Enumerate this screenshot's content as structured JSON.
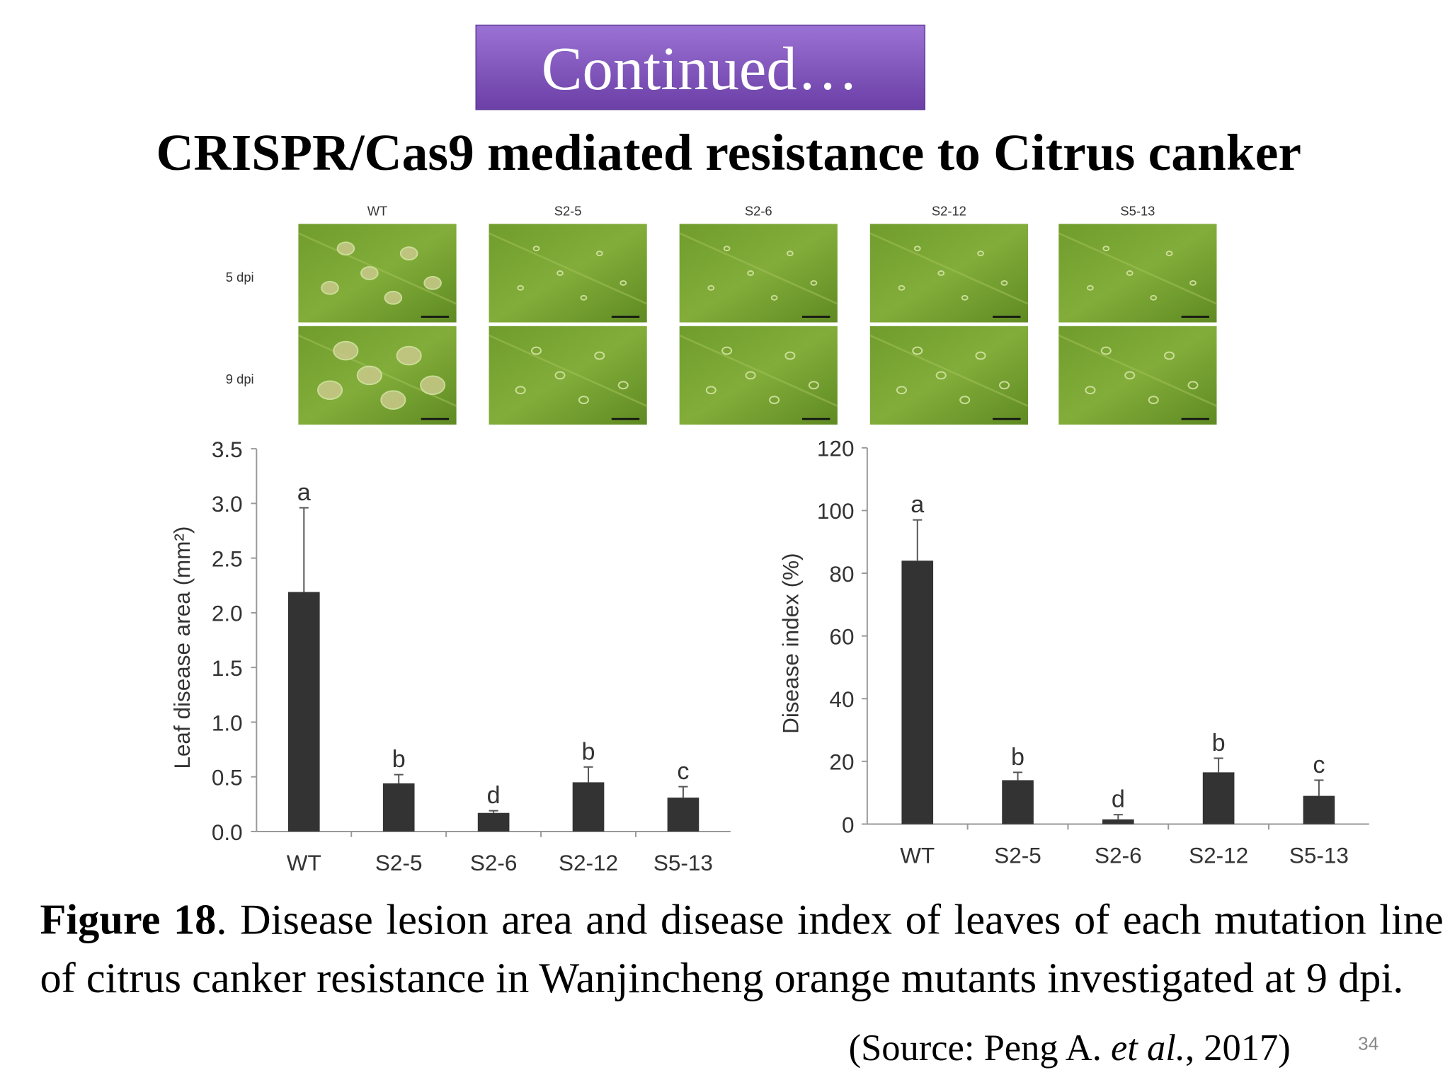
{
  "banner": "Continued…",
  "title": "CRISPR/Cas9 mediated resistance to Citrus canker",
  "photo_panel": {
    "columns": [
      "WT",
      "S2-5",
      "S2-6",
      "S2-12",
      "S5-13"
    ],
    "rows": [
      "5 dpi",
      "9 dpi"
    ]
  },
  "chart_data": [
    {
      "type": "bar",
      "y_label": "Leaf disease area (mm²)",
      "categories": [
        "WT",
        "S2-5",
        "S2-6",
        "S2-12",
        "S5-13"
      ],
      "values": [
        2.19,
        0.44,
        0.17,
        0.45,
        0.31
      ],
      "errors": [
        0.77,
        0.08,
        0.02,
        0.14,
        0.1
      ],
      "annotations": [
        "a",
        "b",
        "d",
        "b",
        "c"
      ],
      "color": "#333333",
      "ylim": [
        0,
        3.5
      ],
      "yticks": [
        {
          "value": 0,
          "label": "0.0"
        },
        0.5,
        {
          "value": 1,
          "label": "1.0"
        },
        1.5,
        {
          "value": 2,
          "label": "2.0"
        },
        2.5,
        {
          "value": 3,
          "label": "3.0"
        },
        3.5
      ]
    },
    {
      "type": "bar",
      "y_label": "Disease index (%)",
      "categories": [
        "WT",
        "S2-5",
        "S2-6",
        "S2-12",
        "S5-13"
      ],
      "values": [
        84,
        14,
        1.5,
        16.5,
        9
      ],
      "errors": [
        13,
        2.5,
        1.5,
        4.5,
        5
      ],
      "annotations": [
        "a",
        "b",
        "d",
        "b",
        "c"
      ],
      "color": "#333333",
      "ylim": [
        0,
        120
      ],
      "yticks": [
        0,
        20,
        40,
        60,
        80,
        100,
        120
      ]
    }
  ],
  "caption": {
    "label": "Figure 18",
    "text": ". Disease lesion area and disease index of leaves of each mutation line of citrus canker resistance in Wanjincheng orange mutants investigated at 9 dpi."
  },
  "source": {
    "prefix": "(Source: Peng A. ",
    "italic": "et al.",
    "suffix": ", 2017)"
  },
  "page_number": "34"
}
